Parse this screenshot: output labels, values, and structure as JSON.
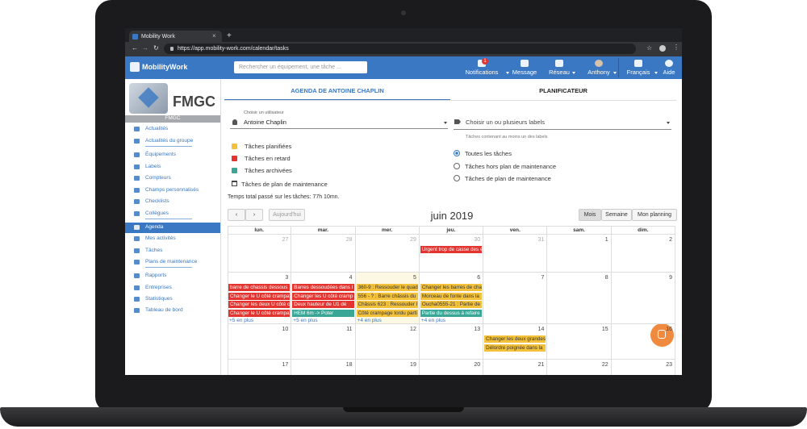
{
  "browser": {
    "tab_title": "Mobility Work",
    "url": "https://app.mobility-work.com/calendar/tasks"
  },
  "header": {
    "brand": "MobilityWork",
    "search_placeholder": "Rechercher un équipement, une tâche ...",
    "notification_count": "1",
    "nav": [
      "Notifications",
      "Message",
      "Réseau",
      "Anthony",
      "Français",
      "Aide"
    ]
  },
  "sidebar": {
    "logo_text": "FMGC",
    "org_name": "FMGC",
    "items": [
      {
        "label": "Actualités"
      },
      {
        "label": "Actualités du groupe"
      },
      {
        "label": "Équipements"
      },
      {
        "label": "Labels"
      },
      {
        "label": "Compteurs"
      },
      {
        "label": "Champs personnalisés"
      },
      {
        "label": "Checklists"
      },
      {
        "label": "Collègues"
      },
      {
        "label": "Agenda",
        "active": true
      },
      {
        "label": "Mes activités"
      },
      {
        "label": "Tâches"
      },
      {
        "label": "Plans de maintenance"
      },
      {
        "label": "Rapports"
      },
      {
        "label": "Entreprises"
      },
      {
        "label": "Statistiques"
      },
      {
        "label": "Tableau de bord"
      }
    ]
  },
  "tabs": [
    {
      "label": "AGENDA DE ANTOINE CHAPLIN",
      "active": true
    },
    {
      "label": "PLANIFICATEUR"
    }
  ],
  "filters": {
    "user_label": "Choisir un utilisateur",
    "user": "Antoine Chaplin",
    "labels_placeholder": "Choisir un ou plusieurs labels",
    "labels_hint": "Tâches contenant au moins un des labels",
    "checkboxes": [
      {
        "label": "Tâches planifiées",
        "color": "#f3c13a"
      },
      {
        "label": "Tâches en retard",
        "color": "#e3342f"
      },
      {
        "label": "Tâches archivées",
        "color": "#3aa796"
      }
    ],
    "plan_toggle": "Tâches de plan de maintenance",
    "radios": [
      {
        "label": "Toutes les tâches",
        "checked": true
      },
      {
        "label": "Tâches hors plan de maintenance"
      },
      {
        "label": "Tâches de plan de maintenance"
      }
    ],
    "total_time": "Temps total passé sur les tâches: 77h 10mn."
  },
  "calendar": {
    "today_button": "Aujourd'hui",
    "title": "juin 2019",
    "views": [
      {
        "label": "Mois",
        "active": true
      },
      {
        "label": "Semaine"
      },
      {
        "label": "Mon planning"
      }
    ],
    "weekdays": [
      "lun.",
      "mar.",
      "mer.",
      "jeu.",
      "ven.",
      "sam.",
      "dim."
    ],
    "weeks": [
      [
        27,
        28,
        29,
        30,
        31,
        1,
        2
      ],
      [
        3,
        4,
        5,
        6,
        7,
        8,
        9
      ],
      [
        10,
        11,
        12,
        13,
        14,
        15,
        16
      ],
      [
        17,
        18,
        19,
        20,
        21,
        22,
        23
      ]
    ],
    "today": {
      "week": 1,
      "day": 2
    },
    "events": [
      {
        "week": 0,
        "day": 3,
        "text": "Urgent trop de casse des é",
        "color": "#e3342f"
      },
      {
        "week": 1,
        "day": 0,
        "text": "barre de chassis dessous",
        "color": "#e3342f"
      },
      {
        "week": 1,
        "day": 0,
        "text": "Changer le U côté crampa",
        "color": "#e3342f"
      },
      {
        "week": 1,
        "day": 0,
        "text": "Changer les deux U côté c",
        "color": "#e3342f"
      },
      {
        "week": 1,
        "day": 0,
        "text": "Changer le U côté crampa",
        "color": "#e3342f"
      },
      {
        "week": 1,
        "day": 1,
        "text": "Barres dessoudées dans l",
        "color": "#e3342f"
      },
      {
        "week": 1,
        "day": 1,
        "text": "Changer les U côté cramp",
        "color": "#e3342f"
      },
      {
        "week": 1,
        "day": 1,
        "text": "Deux hauteur de U1 dé",
        "color": "#e3342f"
      },
      {
        "week": 1,
        "day": 1,
        "text": "HEM 6m -> Poter",
        "color": "#3aa796"
      },
      {
        "week": 1,
        "day": 2,
        "text": "360-9 : Ressouder le quad",
        "color": "#f3c13a"
      },
      {
        "week": 1,
        "day": 2,
        "text": "556 - ? : Barre châssis du",
        "color": "#f3c13a"
      },
      {
        "week": 1,
        "day": 2,
        "text": "Châssis 623 : Ressouder l",
        "color": "#f3c13a"
      },
      {
        "week": 1,
        "day": 2,
        "text": "Côté crampage tordu parti",
        "color": "#f3c13a"
      },
      {
        "week": 1,
        "day": 3,
        "text": "Changer les barres de cha",
        "color": "#f3c13a"
      },
      {
        "week": 1,
        "day": 3,
        "text": "Morceau de fonte dans la",
        "color": "#f3c13a"
      },
      {
        "week": 1,
        "day": 3,
        "text": "Oucha0555-21 : Partie de",
        "color": "#f3c13a"
      },
      {
        "week": 1,
        "day": 3,
        "text": "Partie du dessus à refaire",
        "color": "#3aa796"
      },
      {
        "week": 2,
        "day": 4,
        "text": "Changer les deux grandes",
        "color": "#f3c13a"
      },
      {
        "week": 2,
        "day": 4,
        "text": "Délordre poignée dans la",
        "color": "#f3c13a"
      }
    ],
    "more": [
      {
        "week": 1,
        "day": 0,
        "label": "+5 en plus"
      },
      {
        "week": 1,
        "day": 1,
        "label": "+5 en plus"
      },
      {
        "week": 1,
        "day": 2,
        "label": "+4 en plus"
      },
      {
        "week": 1,
        "day": 3,
        "label": "+4 en plus"
      }
    ]
  }
}
